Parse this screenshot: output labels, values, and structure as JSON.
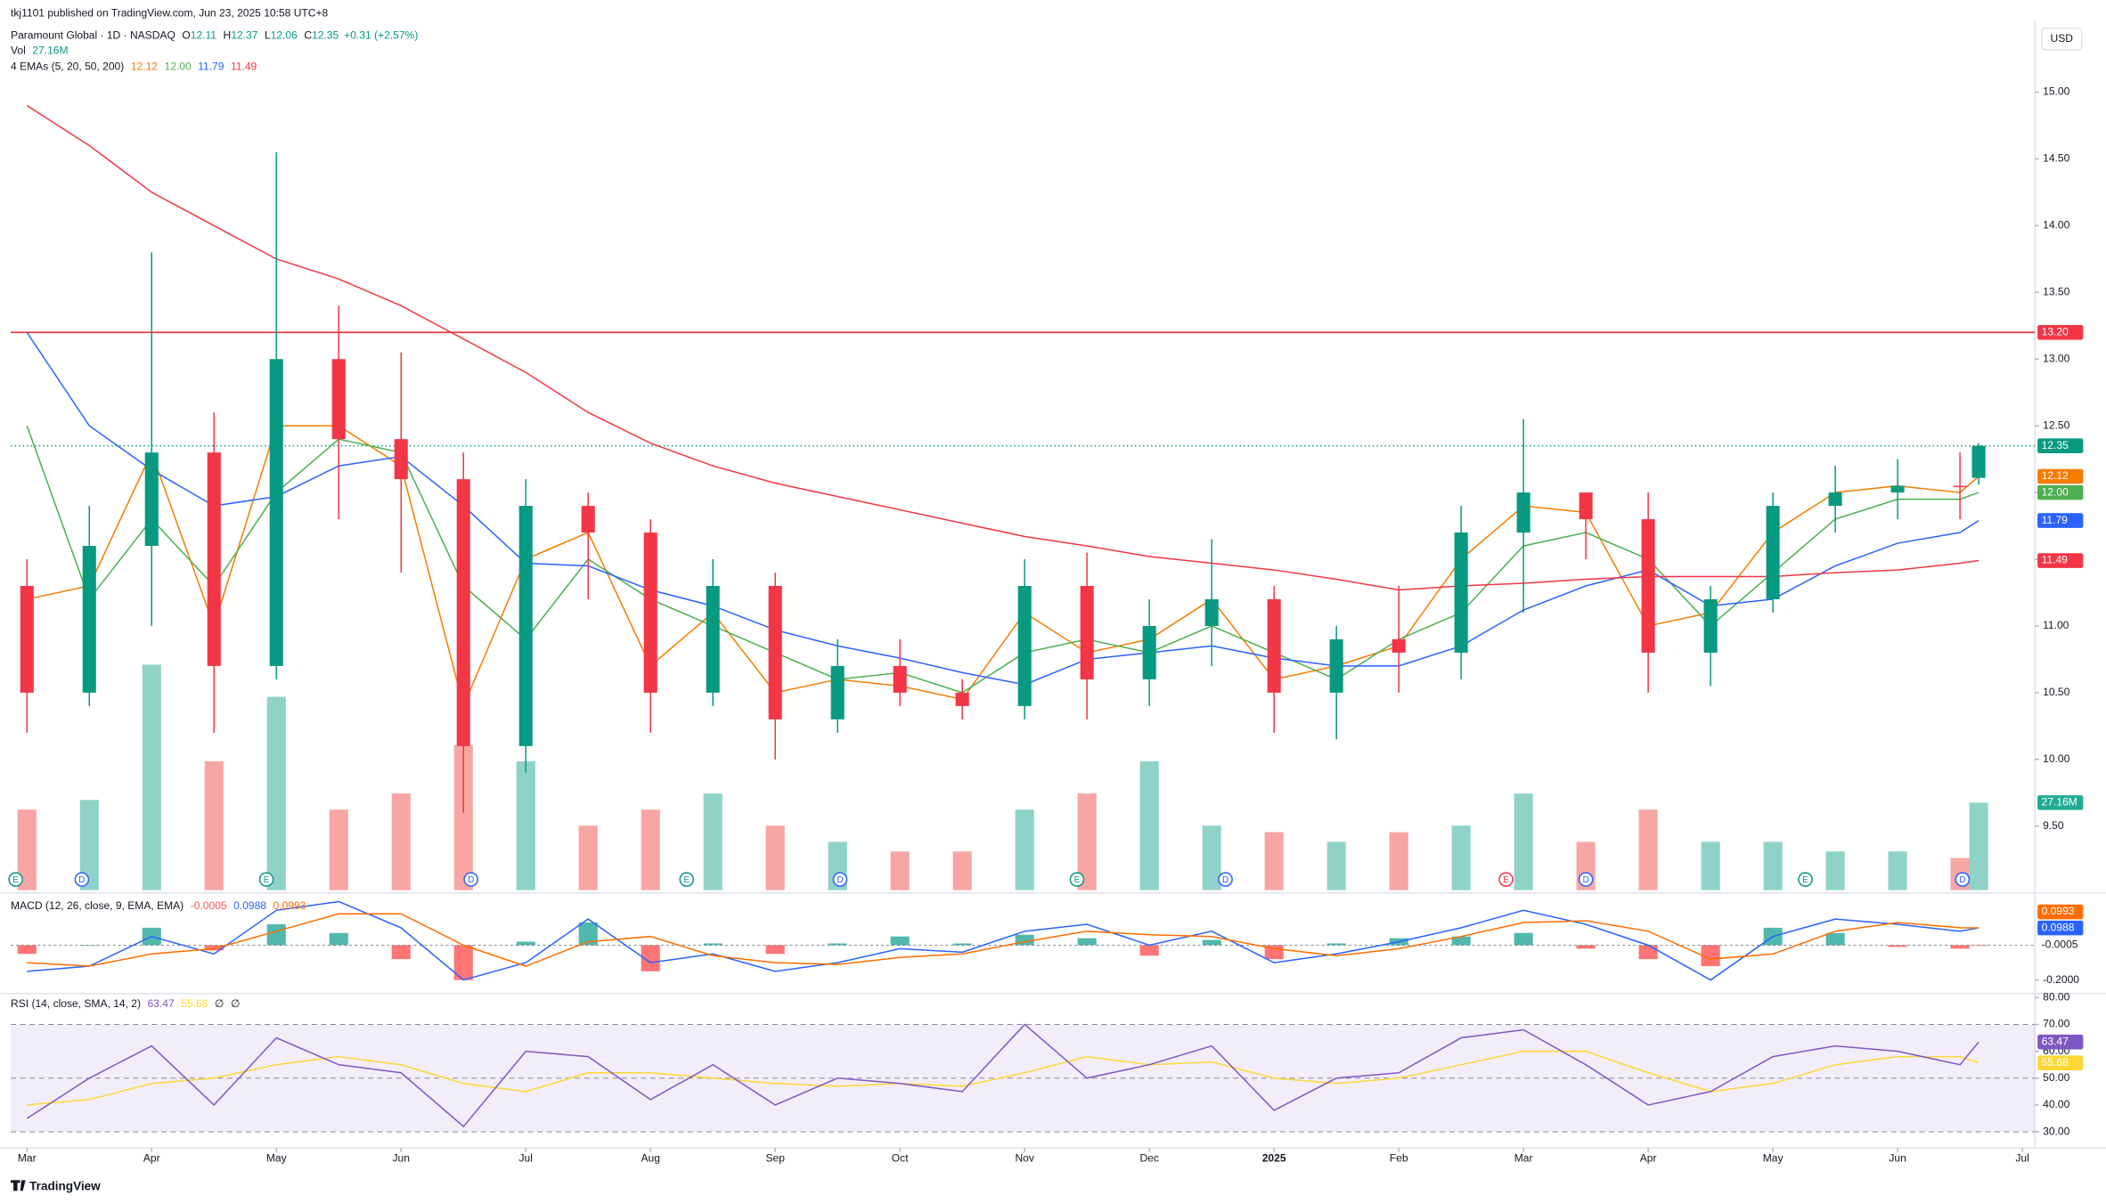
{
  "header": {
    "publisher": "tkj1101 published on TradingView.com, Jun 23, 2025 10:58 UTC+8",
    "brand": "TradingView",
    "currency": "USD"
  },
  "chart_data": [
    {
      "type": "candlestick",
      "title": "Paramount Global · 1D · NASDAQ",
      "ohlc_legend": [
        {
          "label": "O",
          "value": 12.11
        },
        {
          "label": "H",
          "value": 12.37
        },
        {
          "label": "L",
          "value": 12.06
        },
        {
          "label": "C",
          "value": 12.35
        }
      ],
      "change": "+0.31 (+2.57%)",
      "up_color": "#089981",
      "down_color": "#f23645",
      "x": [
        0,
        0.5,
        1,
        1.5,
        2,
        2.5,
        3,
        3.5,
        4,
        4.5,
        5,
        5.5,
        6,
        6.5,
        7,
        7.5,
        8,
        8.5,
        9,
        9.5,
        10,
        10.5,
        11,
        11.5,
        12,
        12.5,
        13,
        13.5,
        14,
        14.5,
        15,
        15.5,
        15.65
      ],
      "open": [
        11.3,
        10.5,
        11.6,
        12.3,
        10.7,
        13.0,
        12.4,
        12.1,
        10.1,
        11.9,
        11.7,
        10.5,
        11.3,
        10.3,
        10.7,
        10.5,
        10.4,
        11.3,
        10.6,
        11.0,
        11.2,
        10.5,
        10.9,
        10.8,
        11.7,
        12.0,
        11.8,
        10.8,
        11.2,
        11.9,
        12.0,
        12.05,
        12.11
      ],
      "high": [
        11.5,
        11.9,
        13.8,
        12.6,
        14.55,
        13.4,
        13.05,
        12.3,
        12.1,
        12.0,
        11.8,
        11.5,
        11.4,
        10.9,
        10.9,
        10.6,
        11.5,
        11.55,
        11.2,
        11.65,
        11.3,
        11.0,
        11.3,
        11.9,
        12.55,
        12.0,
        12.0,
        11.3,
        12.0,
        12.2,
        12.25,
        12.3,
        12.37
      ],
      "low": [
        10.2,
        10.4,
        11.0,
        10.2,
        10.6,
        11.8,
        11.4,
        9.6,
        9.9,
        11.2,
        10.2,
        10.4,
        10.0,
        10.2,
        10.4,
        10.3,
        10.3,
        10.3,
        10.4,
        10.7,
        10.2,
        10.15,
        10.5,
        10.6,
        11.1,
        11.5,
        10.5,
        10.55,
        11.1,
        11.7,
        11.8,
        11.8,
        12.06
      ],
      "close": [
        10.5,
        11.6,
        12.3,
        10.7,
        13.0,
        12.4,
        12.1,
        10.1,
        11.9,
        11.7,
        10.5,
        11.3,
        10.3,
        10.7,
        10.5,
        10.4,
        11.3,
        10.6,
        11.0,
        11.2,
        10.5,
        10.9,
        10.8,
        11.7,
        12.0,
        11.8,
        10.8,
        11.2,
        11.9,
        12.0,
        12.05,
        12.04,
        12.35
      ],
      "xlim": [
        -0.13,
        16.1
      ],
      "xticks": [
        {
          "value": 0,
          "label": "Mar"
        },
        {
          "value": 1,
          "label": "Apr"
        },
        {
          "value": 2,
          "label": "May"
        },
        {
          "value": 3,
          "label": "Jun"
        },
        {
          "value": 4,
          "label": "Jul"
        },
        {
          "value": 5,
          "label": "Aug"
        },
        {
          "value": 6,
          "label": "Sep"
        },
        {
          "value": 7,
          "label": "Oct"
        },
        {
          "value": 8,
          "label": "Nov"
        },
        {
          "value": 9,
          "label": "Dec"
        },
        {
          "value": 10,
          "label": "2025"
        },
        {
          "value": 11,
          "label": "Feb"
        },
        {
          "value": 12,
          "label": "Mar"
        },
        {
          "value": 13,
          "label": "Apr"
        },
        {
          "value": 14,
          "label": "May"
        },
        {
          "value": 15,
          "label": "Jun"
        },
        {
          "value": 16,
          "label": "Jul"
        }
      ],
      "ylim": [
        9.02,
        15.54
      ],
      "yticks": [
        {
          "value": 9.5,
          "label": "9.50"
        },
        {
          "value": 10,
          "label": "10.00"
        },
        {
          "value": 10.5,
          "label": "10.50"
        },
        {
          "value": 11,
          "label": "11.00"
        },
        {
          "value": 11.5,
          "label": "11.50"
        },
        {
          "value": 12,
          "label": "12.00"
        },
        {
          "value": 12.5,
          "label": "12.50"
        },
        {
          "value": 13,
          "label": "13.00"
        },
        {
          "value": 13.5,
          "label": "13.50"
        },
        {
          "value": 14,
          "label": "14.00"
        },
        {
          "value": 14.5,
          "label": "14.50"
        },
        {
          "value": 15,
          "label": "15.00"
        }
      ],
      "hline": {
        "value": 13.2,
        "label": "13.20",
        "color": "#f23645"
      },
      "last_price": {
        "value": 12.35,
        "label": "12.35",
        "color": "#089981"
      },
      "volume": {
        "name": "Vol",
        "values": [
          25,
          28,
          70,
          40,
          60,
          25,
          30,
          45,
          40,
          20,
          25,
          30,
          20,
          15,
          12,
          12,
          25,
          30,
          40,
          20,
          18,
          15,
          18,
          20,
          30,
          15,
          25,
          15,
          15,
          12,
          12,
          10,
          27.16
        ],
        "last_label": "27.16M",
        "ylim": [
          0,
          270
        ],
        "up_color": "#8fd3c8",
        "down_color": "#f7a6a4",
        "badge_color": "#22ab94"
      },
      "ema": {
        "name": "4 EMAs (5, 20, 50, 200)",
        "series": [
          {
            "color": "#f57c00",
            "last_label": "12.12",
            "values": [
              11.2,
              11.3,
              12.3,
              11.0,
              12.5,
              12.5,
              12.2,
              10.4,
              11.5,
              11.7,
              10.7,
              11.1,
              10.5,
              10.6,
              10.55,
              10.45,
              11.1,
              10.8,
              10.9,
              11.2,
              10.6,
              10.7,
              10.85,
              11.5,
              11.9,
              11.85,
              11.0,
              11.1,
              11.7,
              12.0,
              12.05,
              12.0,
              12.12
            ]
          },
          {
            "color": "#4caf50",
            "last_label": "12.00",
            "values": [
              12.5,
              11.2,
              11.8,
              11.3,
              12.0,
              12.4,
              12.3,
              11.3,
              10.9,
              11.5,
              11.2,
              11.0,
              10.8,
              10.6,
              10.65,
              10.5,
              10.8,
              10.9,
              10.8,
              11.0,
              10.8,
              10.6,
              10.9,
              11.1,
              11.6,
              11.7,
              11.5,
              11.0,
              11.4,
              11.8,
              11.95,
              11.95,
              12.0
            ]
          },
          {
            "color": "#2962ff",
            "last_label": "11.79",
            "values": [
              13.2,
              12.5,
              12.17,
              11.9,
              11.97,
              12.2,
              12.27,
              11.9,
              11.47,
              11.45,
              11.27,
              11.15,
              10.97,
              10.85,
              10.76,
              10.65,
              10.56,
              10.75,
              10.8,
              10.85,
              10.76,
              10.7,
              10.7,
              10.85,
              11.12,
              11.3,
              11.42,
              11.15,
              11.2,
              11.45,
              11.62,
              11.7,
              11.79
            ]
          },
          {
            "color": "#f23645",
            "last_label": "11.49",
            "values": [
              14.9,
              14.6,
              14.25,
              14.0,
              13.75,
              13.6,
              13.4,
              13.15,
              12.9,
              12.6,
              12.37,
              12.2,
              12.07,
              11.97,
              11.87,
              11.77,
              11.67,
              11.6,
              11.52,
              11.47,
              11.42,
              11.35,
              11.27,
              11.3,
              11.32,
              11.35,
              11.37,
              11.37,
              11.37,
              11.4,
              11.42,
              11.47,
              11.49
            ]
          }
        ]
      },
      "events": [
        {
          "label": "E",
          "x": -0.09,
          "color": "#089981"
        },
        {
          "label": "D",
          "x": 0.44,
          "color": "#2962ff"
        },
        {
          "label": "E",
          "x": 1.92,
          "color": "#089981"
        },
        {
          "label": "D",
          "x": 3.56,
          "color": "#2962ff"
        },
        {
          "label": "E",
          "x": 5.29,
          "color": "#089981"
        },
        {
          "label": "D",
          "x": 6.52,
          "color": "#2962ff"
        },
        {
          "label": "E",
          "x": 8.42,
          "color": "#089981"
        },
        {
          "label": "D",
          "x": 9.61,
          "color": "#2962ff"
        },
        {
          "label": "E",
          "x": 11.86,
          "color": "#f23645"
        },
        {
          "label": "D",
          "x": 12.5,
          "color": "#2962ff"
        },
        {
          "label": "E",
          "x": 14.26,
          "color": "#089981"
        },
        {
          "label": "D",
          "x": 15.52,
          "color": "#2962ff"
        }
      ]
    },
    {
      "type": "macd",
      "title": "MACD (12, 26, close, 9, EMA, EMA)",
      "ylim": [
        -0.262,
        0.277
      ],
      "yticks": [
        {
          "value": -0.2,
          "label": "-0.2000"
        }
      ],
      "histogram": {
        "up_color": "#26a69a",
        "down_color": "#ff5252",
        "last_label": "-0.0005",
        "values": [
          -0.05,
          0,
          0.1,
          -0.03,
          0.12,
          0.07,
          -0.08,
          -0.2,
          0.02,
          0.13,
          -0.15,
          0.01,
          -0.05,
          0.01,
          0.05,
          0.01,
          0.06,
          0.04,
          -0.06,
          0.03,
          -0.08,
          0.01,
          0.04,
          0.05,
          0.07,
          -0.02,
          -0.08,
          -0.12,
          0.1,
          0.07,
          -0.01,
          -0.02,
          -0.0005
        ]
      },
      "series": [
        {
          "color": "#2962ff",
          "last_label": "0.0988",
          "values": [
            -0.15,
            -0.12,
            0.05,
            -0.05,
            0.2,
            0.25,
            0.1,
            -0.2,
            -0.1,
            0.15,
            -0.1,
            -0.05,
            -0.15,
            -0.1,
            -0.02,
            -0.04,
            0.08,
            0.12,
            0.0,
            0.08,
            -0.1,
            -0.05,
            0.02,
            0.1,
            0.2,
            0.12,
            0.0,
            -0.2,
            0.05,
            0.15,
            0.12,
            0.08,
            0.0988
          ]
        },
        {
          "color": "#ff6d00",
          "last_label": "0.0993",
          "values": [
            -0.1,
            -0.12,
            -0.05,
            -0.02,
            0.08,
            0.18,
            0.18,
            0.0,
            -0.12,
            0.02,
            0.05,
            -0.06,
            -0.1,
            -0.11,
            -0.07,
            -0.05,
            0.02,
            0.08,
            0.06,
            0.05,
            -0.02,
            -0.06,
            -0.02,
            0.05,
            0.13,
            0.14,
            0.08,
            -0.08,
            -0.05,
            0.08,
            0.13,
            0.1,
            0.0993
          ]
        }
      ]
    },
    {
      "type": "rsi",
      "title": "RSI (14, close, SMA, 14, 2)",
      "extras": [
        "∅",
        "∅"
      ],
      "ylim": [
        24,
        80.5
      ],
      "yticks": [
        {
          "value": 30,
          "label": "30.00"
        },
        {
          "value": 40,
          "label": "40.00"
        },
        {
          "value": 50,
          "label": "50.00"
        },
        {
          "value": 60,
          "label": "60.00"
        },
        {
          "value": 70,
          "label": "70.00"
        },
        {
          "value": 80,
          "label": "80.00"
        }
      ],
      "band": [
        30,
        70
      ],
      "midline": 50,
      "band_color": "#7e57c2",
      "series": [
        {
          "color": "#7e57c2",
          "last_label": "63.47",
          "values": [
            35,
            50,
            62,
            40,
            65,
            55,
            52,
            32,
            60,
            58,
            42,
            55,
            40,
            50,
            48,
            45,
            70,
            50,
            55,
            62,
            38,
            50,
            52,
            65,
            68,
            55,
            40,
            45,
            58,
            62,
            60,
            55,
            63.47
          ]
        },
        {
          "color": "#fdd835",
          "last_label": "55.68",
          "values": [
            40,
            42,
            48,
            50,
            55,
            58,
            55,
            48,
            45,
            52,
            52,
            50,
            48,
            47,
            48,
            47,
            52,
            58,
            55,
            56,
            50,
            48,
            50,
            55,
            60,
            60,
            52,
            45,
            48,
            55,
            58,
            58,
            55.68
          ]
        }
      ]
    }
  ]
}
